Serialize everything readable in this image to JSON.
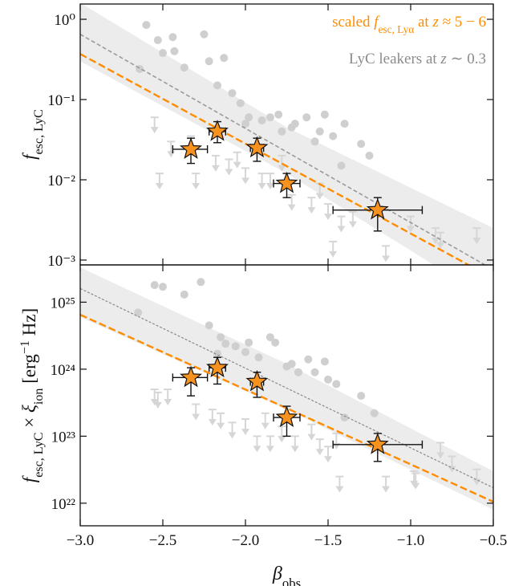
{
  "chart_data": [
    {
      "type": "scatter",
      "log_y": true,
      "xlim": [
        -3,
        -0.5
      ],
      "ylim": [
        0.00087,
        1.55
      ],
      "xticks": [
        -3,
        -2.5,
        -2,
        -1.5,
        -1,
        -0.5
      ],
      "yticks": [
        {
          "value": 0.001,
          "label": "10⁻³"
        },
        {
          "value": 0.01,
          "label": "10⁻²"
        },
        {
          "value": 0.1,
          "label": "10⁻¹"
        },
        {
          "value": 1,
          "label": "10⁰"
        }
      ],
      "ylabel": [
        {
          "text": "f",
          "style": "italic"
        },
        {
          "text": "esc, LyC",
          "style": "sub"
        }
      ],
      "legend": [
        {
          "color": "#ff8c00",
          "segments": [
            {
              "text": "scaled ",
              "style": "roman"
            },
            {
              "text": "f",
              "style": "italic"
            },
            {
              "text": "esc, Lyα",
              "style": "sub"
            },
            {
              "text": " at ",
              "style": "roman"
            },
            {
              "text": "z",
              "style": "italic"
            },
            {
              "text": " ≈ 5 − 6",
              "style": "roman"
            }
          ]
        },
        {
          "color": "#8c8c8c",
          "segments": [
            {
              "text": "LyC leakers at ",
              "style": "roman"
            },
            {
              "text": "z",
              "style": "italic"
            },
            {
              "text": " ∼ 0.3",
              "style": "roman"
            }
          ]
        }
      ],
      "series": [
        {
          "kind": "band",
          "color": "#ececec",
          "x": [
            -3,
            -1.75,
            -0.5
          ],
          "low": [
            0.3,
            0.012,
            0.0003
          ],
          "high": [
            1.6,
            0.045,
            0.0025
          ]
        },
        {
          "kind": "points",
          "color": "#cfcfcf",
          "x": [
            -2.6,
            -2.53,
            -2.5,
            -2.44,
            -2.43,
            -2.37,
            -2.25,
            -2.22,
            -2.17,
            -2.64,
            -2.13,
            -2.08,
            -2.03,
            -2.0,
            -1.98,
            -1.9,
            -1.85,
            -1.8,
            -1.78,
            -1.72,
            -1.7,
            -1.63,
            -1.58,
            -1.55,
            -1.52,
            -1.47,
            -1.42,
            -1.4,
            -1.3,
            -1.25
          ],
          "values": [
            0.85,
            0.55,
            0.38,
            0.6,
            0.4,
            0.25,
            0.65,
            0.3,
            0.15,
            0.24,
            0.33,
            0.12,
            0.09,
            0.05,
            0.06,
            0.055,
            0.06,
            0.065,
            0.04,
            0.045,
            0.05,
            0.06,
            0.03,
            0.04,
            0.065,
            0.035,
            0.015,
            0.05,
            0.028,
            0.02
          ]
        },
        {
          "kind": "upper_limits",
          "color": "#d6d6d6",
          "x": [
            -2.55,
            -2.45,
            -2.33,
            -2.3,
            -2.52,
            -2.18,
            -2.1,
            -2.05,
            -2.0,
            -1.9,
            -1.85,
            -1.78,
            -1.72,
            -1.6,
            -1.55,
            -1.5,
            -1.42,
            -1.35,
            -1.0,
            -0.85,
            -0.6,
            -1.15,
            -1.47,
            -0.82
          ],
          "values": [
            0.06,
            0.03,
            0.035,
            0.012,
            0.012,
            0.02,
            0.018,
            0.022,
            0.014,
            0.012,
            0.012,
            0.02,
            0.0065,
            0.006,
            0.009,
            0.005,
            0.0035,
            0.004,
            0.0035,
            0.0025,
            0.0025,
            0.0015,
            0.0017,
            0.0022
          ]
        },
        {
          "kind": "line",
          "color": "#9a9a9a",
          "dash": "5,3",
          "width": 1.6,
          "x": [
            -3,
            -0.5
          ],
          "values": [
            0.65,
            0.00076
          ]
        },
        {
          "kind": "line",
          "color": "#ff8c00",
          "dash": "9,4",
          "width": 2.4,
          "x": [
            -3,
            -0.5
          ],
          "values": [
            0.37,
            0.00059
          ]
        },
        {
          "kind": "stars",
          "color": "#f7921e",
          "x": [
            -2.33,
            -2.17,
            -1.93,
            -1.75,
            -1.2
          ],
          "values": [
            0.024,
            0.04,
            0.025,
            0.009,
            0.0042
          ],
          "x_low": [
            -2.44,
            -2.22,
            -1.97,
            -1.83,
            -1.47
          ],
          "x_high": [
            -2.23,
            -2.12,
            -1.89,
            -1.67,
            -0.93
          ],
          "y_low": [
            0.016,
            0.029,
            0.017,
            0.006,
            0.0023
          ],
          "y_high": [
            0.033,
            0.053,
            0.033,
            0.012,
            0.006
          ]
        }
      ]
    },
    {
      "type": "scatter",
      "log_y": true,
      "xlim": [
        -3,
        -0.5
      ],
      "ylim": [
        4.6e+21,
        3.6e+25
      ],
      "xticks": [
        {
          "value": -3,
          "label": "−3.0"
        },
        {
          "value": -2.5,
          "label": "−2.5"
        },
        {
          "value": -2,
          "label": "−2.0"
        },
        {
          "value": -1.5,
          "label": "−1.5"
        },
        {
          "value": -1,
          "label": "−1.0"
        },
        {
          "value": -0.5,
          "label": "−0.5"
        }
      ],
      "yticks": [
        {
          "value": 1e+22,
          "label": "10²²"
        },
        {
          "value": 1e+23,
          "label": "10²³"
        },
        {
          "value": 1e+24,
          "label": "10²⁴"
        },
        {
          "value": 1e+25,
          "label": "10²⁵"
        }
      ],
      "xlabel": [
        {
          "text": "β",
          "style": "italic"
        },
        {
          "text": "obs",
          "style": "sub"
        }
      ],
      "ylabel": [
        {
          "text": "f",
          "style": "italic"
        },
        {
          "text": "esc, LyC",
          "style": "sub"
        },
        {
          "text": " × ",
          "style": "roman"
        },
        {
          "text": "ξ",
          "style": "italic"
        },
        {
          "text": "ion",
          "style": "sub"
        },
        {
          "text": " [erg",
          "style": "roman"
        },
        {
          "text": "−1",
          "style": "super"
        },
        {
          "text": " Hz]",
          "style": "roman"
        }
      ],
      "series": [
        {
          "kind": "band",
          "color": "#ececec",
          "x": [
            -3,
            -1.75,
            -0.5
          ],
          "low": [
            6e+24,
            2.5e+23,
            8e+21
          ],
          "high": [
            3.3e+25,
            1.2e+24,
            3e+22
          ]
        },
        {
          "kind": "points",
          "color": "#cfcfcf",
          "x": [
            -2.65,
            -2.55,
            -2.5,
            -2.37,
            -2.27,
            -2.22,
            -2.15,
            -2.17,
            -2.12,
            -2.06,
            -2.0,
            -1.98,
            -1.92,
            -1.85,
            -1.82,
            -1.75,
            -1.72,
            -1.68,
            -1.62,
            -1.58,
            -1.52,
            -1.5,
            -1.45,
            -1.3,
            -1.22,
            -1.4
          ],
          "values": [
            7e+24,
            1.8e+25,
            1.7e+25,
            1.3e+25,
            2e+25,
            4.5e+24,
            3e+24,
            1.7e+24,
            2.4e+24,
            2.2e+24,
            1.8e+24,
            2.5e+24,
            1.5e+24,
            3e+24,
            2.5e+24,
            1.1e+24,
            1.2e+24,
            9e+23,
            1.4e+24,
            9e+23,
            1.3e+24,
            7e+23,
            6e+23,
            4e+23,
            2.2e+23,
            1.9e+23
          ]
        },
        {
          "kind": "upper_limits",
          "color": "#d6d6d6",
          "x": [
            -2.55,
            -2.53,
            -2.47,
            -2.3,
            -2.2,
            -2.15,
            -2.08,
            -2.0,
            -1.93,
            -1.88,
            -1.85,
            -1.78,
            -1.7,
            -1.6,
            -1.55,
            -1.5,
            -1.45,
            -1.43,
            -1.15,
            -0.98,
            -0.97,
            -0.6,
            -0.82,
            -0.75
          ],
          "values": [
            5e+23,
            4.5e+23,
            5e+23,
            3e+23,
            2.5e+23,
            2.2e+23,
            1.6e+23,
            1.8e+23,
            1e+23,
            2.2e+23,
            1e+23,
            1.4e+23,
            1e+23,
            1.5e+23,
            9e+22,
            7e+22,
            1.1e+23,
            2.5e+22,
            2.5e+22,
            3e+22,
            2.8e+22,
            3.2e+22,
            8e+22,
            5e+22
          ]
        },
        {
          "kind": "line",
          "color": "#8a8a8a",
          "dash": "3,2",
          "width": 1.2,
          "x": [
            -3,
            -0.5
          ],
          "values": [
            1.6e+25,
            1.7e+22
          ]
        },
        {
          "kind": "line",
          "color": "#ff8c00",
          "dash": "9,4",
          "width": 2.4,
          "x": [
            -3,
            -0.5
          ],
          "values": [
            6.5e+24,
            1.05e+22
          ]
        },
        {
          "kind": "stars",
          "color": "#f7921e",
          "x": [
            -2.33,
            -2.17,
            -1.93,
            -1.75,
            -1.2
          ],
          "values": [
            7.5e+23,
            1.05e+24,
            6.5e+23,
            1.9e+23,
            7.5e+22
          ],
          "x_low": [
            -2.44,
            -2.22,
            -1.97,
            -1.83,
            -1.47
          ],
          "x_high": [
            -2.23,
            -2.12,
            -1.89,
            -1.67,
            -0.93
          ],
          "y_low": [
            4e+23,
            6e+23,
            3.8e+23,
            1e+23,
            4.2e+22
          ],
          "y_high": [
            1.05e+24,
            1.5e+24,
            9e+23,
            2.8e+23,
            1.1e+23
          ]
        }
      ]
    }
  ]
}
